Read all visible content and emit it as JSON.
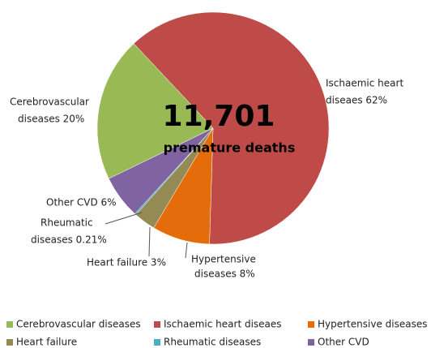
{
  "chart_data": {
    "type": "pie",
    "center_text": [
      "11,701",
      "premature deaths"
    ],
    "categories": [
      "Ischaemic heart diseaes",
      "Hypertensive diseases",
      "Heart failure",
      "Rheumatic diseases",
      "Other CVD",
      "Cerebrovascular diseases"
    ],
    "values": [
      62,
      8,
      3,
      0.21,
      6,
      20
    ],
    "value_labels": [
      [
        "Ischaemic heart",
        "diseaes 62%"
      ],
      [
        "Hypertensive",
        "diseases 8%"
      ],
      [
        "Heart failure 3%"
      ],
      [
        "Rheumatic",
        "diseases 0.21%"
      ],
      [
        "Other CVD 6%"
      ],
      [
        "Cerebrovascular",
        "diseases 20%"
      ]
    ],
    "colors": [
      "#be4b48",
      "#e46c0a",
      "#948a54",
      "#4bacc6",
      "#8064a2",
      "#98b954"
    ],
    "legend": "bottom"
  }
}
